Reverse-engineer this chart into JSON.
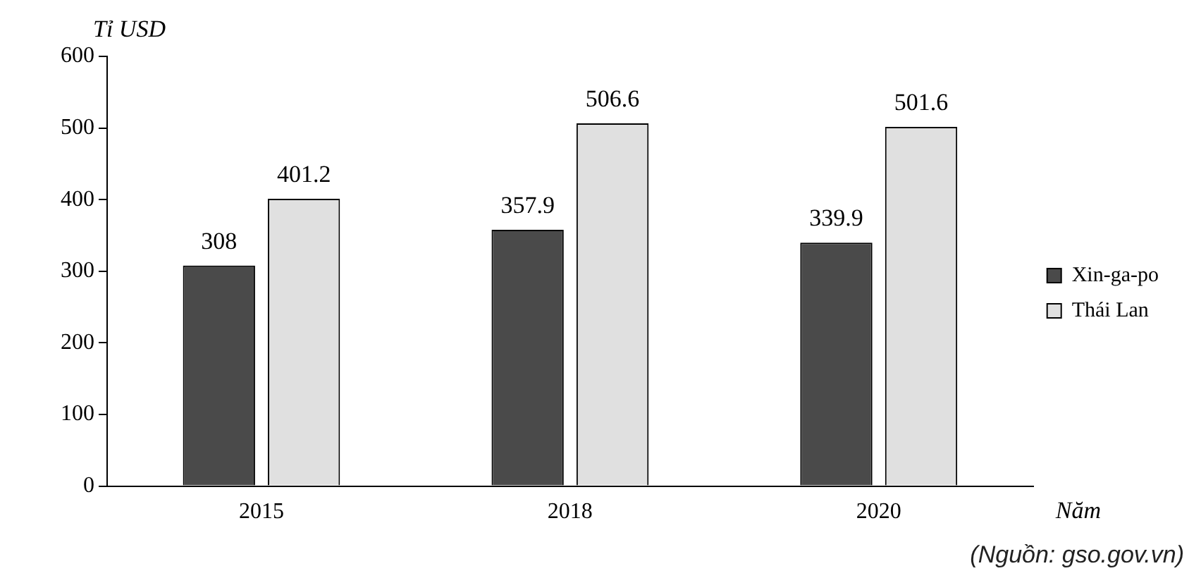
{
  "chart_data": {
    "type": "bar",
    "ylabel": "Tỉ USD",
    "xlabel": "Năm",
    "categories": [
      "2015",
      "2018",
      "2020"
    ],
    "series": [
      {
        "name": "Xin-ga-po",
        "color": "#4a4a4a",
        "values": [
          308,
          357.9,
          339.9
        ]
      },
      {
        "name": "Thái Lan",
        "color": "#e0e0e0",
        "values": [
          401.2,
          506.6,
          501.6
        ]
      }
    ],
    "ylim": [
      0,
      600
    ],
    "yticks": [
      0,
      100,
      200,
      300,
      400,
      500,
      600
    ],
    "grid": false,
    "legend": "right",
    "data_labels": true,
    "annotations": [
      "(Nguồn: gso.gov.vn)"
    ]
  }
}
